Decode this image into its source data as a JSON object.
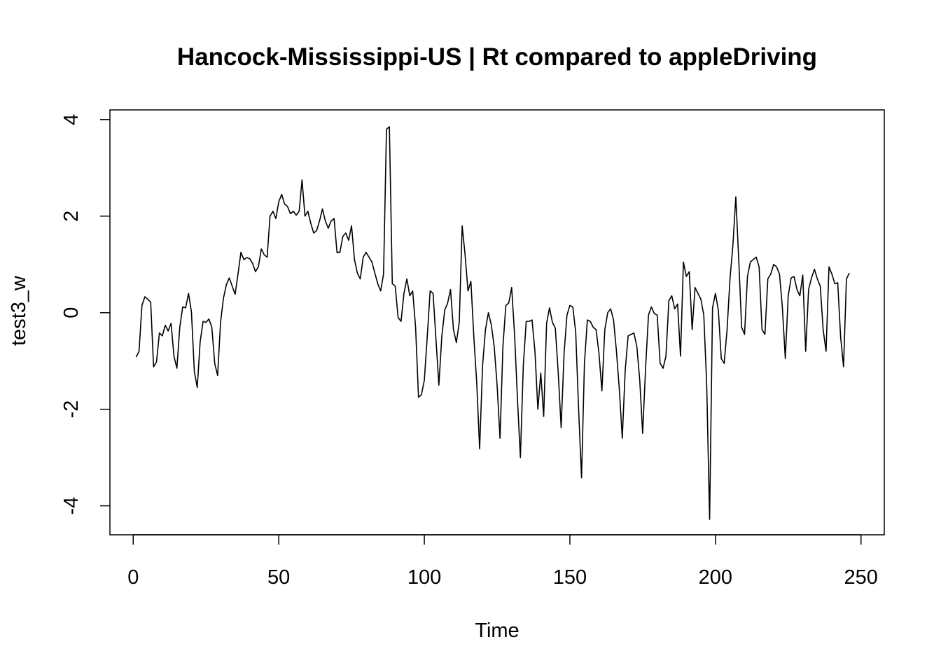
{
  "chart_data": {
    "type": "line",
    "title": "Hancock-Mississippi-US | Rt compared to appleDriving",
    "xlabel": "Time",
    "ylabel": "test3_w",
    "xlim": [
      -8,
      258
    ],
    "ylim": [
      -4.6,
      4.2
    ],
    "x_ticks": [
      0,
      50,
      100,
      150,
      200,
      250
    ],
    "y_ticks": [
      -4,
      -2,
      0,
      2,
      4
    ],
    "x_tick_labels": [
      "0",
      "50",
      "100",
      "150",
      "200",
      "250"
    ],
    "y_tick_labels": [
      "-4",
      "-2",
      "0",
      "2",
      "4"
    ],
    "grid": false,
    "x_start": 1,
    "series": [
      {
        "color": "#000000",
        "values": [
          -0.92,
          -0.8,
          0.15,
          0.33,
          0.28,
          0.22,
          -1.12,
          -1.02,
          -0.42,
          -0.48,
          -0.26,
          -0.38,
          -0.22,
          -0.9,
          -1.15,
          -0.3,
          0.12,
          0.1,
          0.4,
          0.02,
          -1.22,
          -1.55,
          -0.6,
          -0.18,
          -0.2,
          -0.13,
          -0.3,
          -1.05,
          -1.3,
          -0.2,
          0.3,
          0.58,
          0.72,
          0.55,
          0.38,
          0.8,
          1.25,
          1.1,
          1.14,
          1.12,
          1.02,
          0.85,
          0.95,
          1.32,
          1.2,
          1.15,
          2.0,
          2.1,
          1.95,
          2.3,
          2.45,
          2.25,
          2.2,
          2.05,
          2.1,
          2.02,
          2.1,
          2.75,
          2.0,
          2.1,
          1.85,
          1.65,
          1.7,
          1.9,
          2.15,
          1.9,
          1.75,
          1.9,
          1.95,
          1.25,
          1.25,
          1.58,
          1.65,
          1.5,
          1.8,
          1.1,
          0.82,
          0.7,
          1.15,
          1.25,
          1.15,
          1.05,
          0.82,
          0.6,
          0.45,
          0.8,
          3.8,
          3.85,
          0.6,
          0.55,
          -0.1,
          -0.18,
          0.4,
          0.7,
          0.35,
          0.45,
          -0.3,
          -1.75,
          -1.7,
          -1.4,
          -0.5,
          0.45,
          0.4,
          -0.55,
          -1.5,
          -0.5,
          0.05,
          0.2,
          0.48,
          -0.35,
          -0.62,
          -0.2,
          1.8,
          1.2,
          0.45,
          0.65,
          -0.5,
          -1.45,
          -2.82,
          -1.1,
          -0.35,
          0.0,
          -0.25,
          -0.7,
          -1.5,
          -2.6,
          -0.7,
          0.15,
          0.2,
          0.52,
          -0.45,
          -1.8,
          -3.0,
          -1.1,
          -0.18,
          -0.18,
          -0.15,
          -0.8,
          -2.0,
          -1.25,
          -2.15,
          -0.22,
          0.1,
          -0.2,
          -0.32,
          -1.25,
          -2.38,
          -0.85,
          -0.05,
          0.15,
          0.12,
          -0.4,
          -2.0,
          -3.42,
          -1.05,
          -0.15,
          -0.18,
          -0.3,
          -0.35,
          -0.85,
          -1.62,
          -0.35,
          0.0,
          0.08,
          -0.15,
          -0.8,
          -1.6,
          -2.6,
          -1.2,
          -0.48,
          -0.45,
          -0.42,
          -0.7,
          -1.4,
          -2.5,
          -1.15,
          -0.05,
          0.12,
          -0.02,
          -0.05,
          -1.05,
          -1.15,
          -0.9,
          0.25,
          0.35,
          0.08,
          0.18,
          -0.9,
          1.05,
          0.75,
          0.85,
          -0.35,
          0.52,
          0.4,
          0.28,
          -0.05,
          -1.5,
          -4.28,
          0.1,
          0.4,
          0.05,
          -0.95,
          -1.05,
          -0.35,
          0.7,
          1.4,
          2.4,
          1.1,
          -0.3,
          -0.45,
          0.75,
          1.05,
          1.1,
          1.15,
          0.95,
          -0.35,
          -0.45,
          0.7,
          0.8,
          1.0,
          0.95,
          0.8,
          0.1,
          -0.95,
          0.35,
          0.72,
          0.75,
          0.48,
          0.35,
          0.78,
          -0.8,
          0.48,
          0.72,
          0.9,
          0.7,
          0.55,
          -0.35,
          -0.8,
          0.95,
          0.8,
          0.6,
          0.62,
          -0.5,
          -1.12,
          0.7,
          0.82
        ]
      }
    ]
  }
}
